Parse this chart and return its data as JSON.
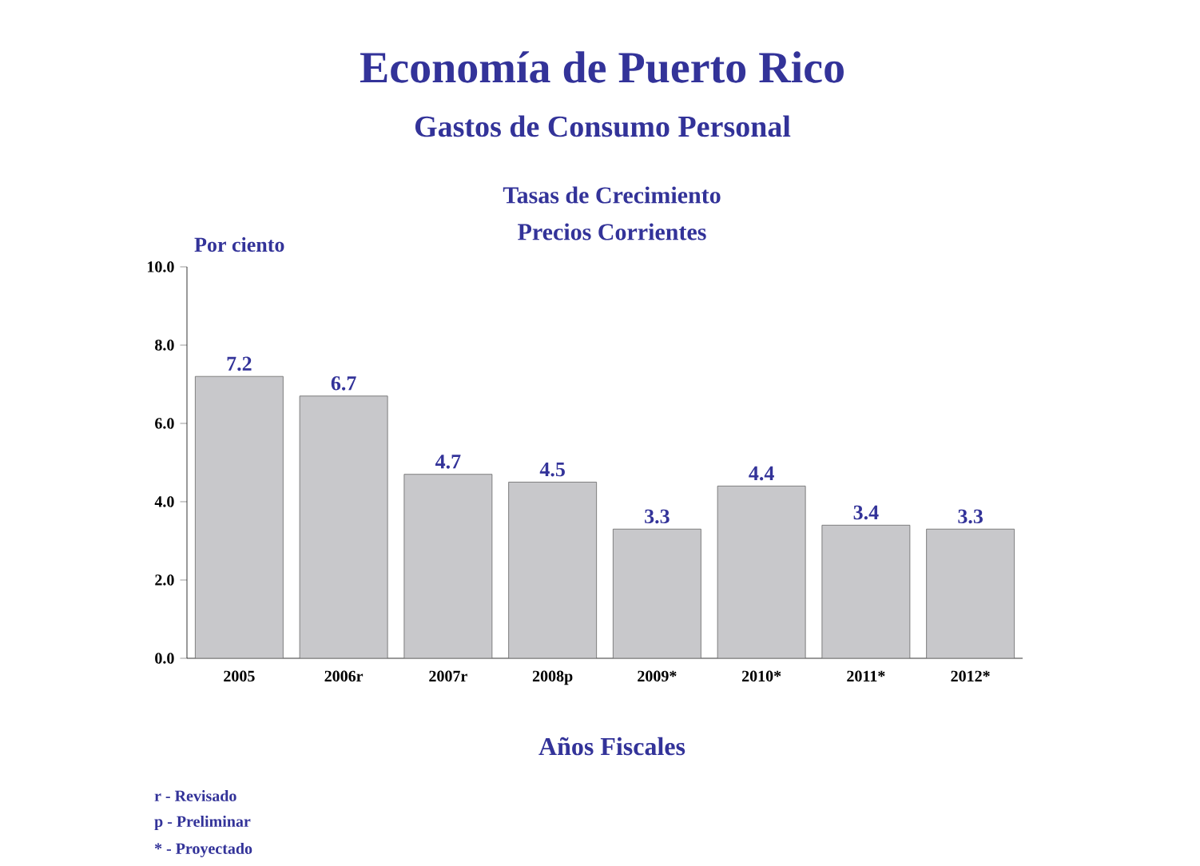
{
  "chart_data": {
    "type": "bar",
    "title": "Economía de Puerto Rico",
    "subtitle": "Gastos de Consumo Personal",
    "ylabel": "Por ciento",
    "xlabel": "Años Fiscales",
    "annotations": [
      "Tasas de Crecimiento",
      "Precios Corrientes",
      "r - Revisado",
      "p - Preliminar",
      "* - Proyectado"
    ],
    "categories": [
      "2005",
      "2006r",
      "2007r",
      "2008p",
      "2009*",
      "2010*",
      "2011*",
      "2012*"
    ],
    "values": [
      7.2,
      6.7,
      4.7,
      4.5,
      3.3,
      4.4,
      3.4,
      3.3
    ],
    "color": "#c8c8cb",
    "data_labels": true,
    "ylim": [
      0,
      10
    ],
    "yticks": [
      {
        "value": 0,
        "label": "0.0"
      },
      {
        "value": 2,
        "label": "2.0"
      },
      {
        "value": 4,
        "label": "4.0"
      },
      {
        "value": 6,
        "label": "6.0"
      },
      {
        "value": 8,
        "label": "8.0"
      },
      {
        "value": 10,
        "label": "10.0"
      }
    ]
  }
}
